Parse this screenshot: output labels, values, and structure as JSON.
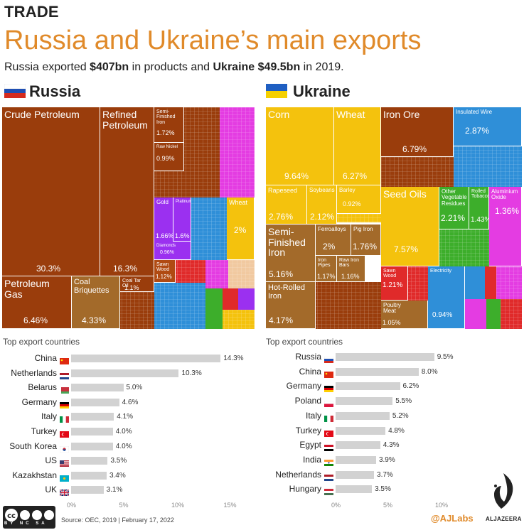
{
  "header": {
    "kicker": "TRADE",
    "title": "Russia and Ukraine’s main exports",
    "subtitle_prefix": "Russia exported ",
    "subtitle_russia_value": "$407bn",
    "subtitle_mid": " in products and ",
    "subtitle_ukraine_value": "Ukraine $49.5bn",
    "subtitle_suffix": " in 2019."
  },
  "colors": {
    "brown": "#9a3d0c",
    "dark_orange": "#b04a12",
    "wood": "#a36a2a",
    "yellow": "#f4c20d",
    "blue": "#2f8fd8",
    "purple": "#9b30f0",
    "magenta": "#e43ce2",
    "green": "#3dae2b",
    "red": "#e02a2a",
    "accent": "#e08a2a",
    "bar": "#d2d2d2"
  },
  "russia": {
    "heading": "Russia",
    "treemap": [
      {
        "label": "Crude Petroleum",
        "pct": "30.3%"
      },
      {
        "label": "Refined\nPetroleum",
        "pct": "16.3%"
      },
      {
        "label": "Petroleum\nGas",
        "pct": "6.46%"
      },
      {
        "label": "Coal\nBriquettes",
        "pct": "4.33%"
      },
      {
        "label": "Coal Tar\nOil",
        "pct": "1.1%"
      },
      {
        "label": "Semi-\nFinished\nIron",
        "pct": "1.72%"
      },
      {
        "label": "Raw Nickel",
        "pct": "0.99%"
      },
      {
        "label": "Gold",
        "pct": "1.66%"
      },
      {
        "label": "Platinum",
        "pct": "1.6%"
      },
      {
        "label": "Diamonds",
        "pct": "0.96%"
      },
      {
        "label": "Wheat",
        "pct": "2%"
      },
      {
        "label": "Sawn\nWood",
        "pct": "1.12%"
      }
    ],
    "top_export_label": "Top export countries",
    "countries": [
      {
        "name": "China",
        "value": 14.3,
        "label": "14.3%"
      },
      {
        "name": "Netherlands",
        "value": 10.3,
        "label": "10.3%"
      },
      {
        "name": "Belarus",
        "value": 5.0,
        "label": "5.0%"
      },
      {
        "name": "Germany",
        "value": 4.6,
        "label": "4.6%"
      },
      {
        "name": "Italy",
        "value": 4.1,
        "label": "4.1%"
      },
      {
        "name": "Turkey",
        "value": 4.0,
        "label": "4.0%"
      },
      {
        "name": "South Korea",
        "value": 4.0,
        "label": "4.0%"
      },
      {
        "name": "US",
        "value": 3.5,
        "label": "3.5%"
      },
      {
        "name": "Kazakhstan",
        "value": 3.4,
        "label": "3.4%"
      },
      {
        "name": "UK",
        "value": 3.1,
        "label": "3.1%"
      }
    ],
    "ticks": [
      "0%",
      "5%",
      "10%",
      "15%"
    ]
  },
  "ukraine": {
    "heading": "Ukraine",
    "treemap": [
      {
        "label": "Corn",
        "pct": "9.64%"
      },
      {
        "label": "Wheat",
        "pct": "6.27%"
      },
      {
        "label": "Iron Ore",
        "pct": "6.79%"
      },
      {
        "label": "Insulated Wire",
        "pct": "2.87%"
      },
      {
        "label": "Rapeseed",
        "pct": "2.76%"
      },
      {
        "label": "Soybeans",
        "pct": "2.12%"
      },
      {
        "label": "Barley",
        "pct": "0.92%"
      },
      {
        "label": "Seed Oils",
        "pct": "7.57%"
      },
      {
        "label": "Other\nVegetable\nResidues",
        "pct": "2.21%"
      },
      {
        "label": "Rolled\nTobacco",
        "pct": "1.43%"
      },
      {
        "label": "Aluminium\nOxide",
        "pct": "1.36%"
      },
      {
        "label": "Semi-\nFinished\nIron",
        "pct": "5.16%"
      },
      {
        "label": "Ferroalloys",
        "pct": "2%"
      },
      {
        "label": "Pig Iron",
        "pct": "1.76%"
      },
      {
        "label": "Iron\nPipes",
        "pct": "1.17%"
      },
      {
        "label": "Raw Iron\nBars",
        "pct": "1.16%"
      },
      {
        "label": "Hot-Rolled\nIron",
        "pct": "4.17%"
      },
      {
        "label": "Sawn Wood",
        "pct": "1.21%"
      },
      {
        "label": "Poultry\nMeat",
        "pct": "1.05%"
      },
      {
        "label": "Electricity",
        "pct": "0.94%"
      }
    ],
    "top_export_label": "Top export countries",
    "countries": [
      {
        "name": "Russia",
        "value": 9.5,
        "label": "9.5%"
      },
      {
        "name": "China",
        "value": 8.0,
        "label": "8.0%"
      },
      {
        "name": "Germany",
        "value": 6.2,
        "label": "6.2%"
      },
      {
        "name": "Poland",
        "value": 5.5,
        "label": "5.5%"
      },
      {
        "name": "Italy",
        "value": 5.2,
        "label": "5.2%"
      },
      {
        "name": "Turkey",
        "value": 4.8,
        "label": "4.8%"
      },
      {
        "name": "Egypt",
        "value": 4.3,
        "label": "4.3%"
      },
      {
        "name": "India",
        "value": 3.9,
        "label": "3.9%"
      },
      {
        "name": "Netherlands",
        "value": 3.7,
        "label": "3.7%"
      },
      {
        "name": "Hungary",
        "value": 3.5,
        "label": "3.5%"
      }
    ],
    "ticks": [
      "0%",
      "5%",
      "10%"
    ]
  },
  "chart_data": [
    {
      "type": "treemap",
      "subtitle": "Russia",
      "items": [
        {
          "label": "Crude Petroleum",
          "value": 30.3
        },
        {
          "label": "Refined Petroleum",
          "value": 16.3
        },
        {
          "label": "Petroleum Gas",
          "value": 6.46
        },
        {
          "label": "Coal Briquettes",
          "value": 4.33
        },
        {
          "label": "Wheat",
          "value": 2
        },
        {
          "label": "Semi-Finished Iron",
          "value": 1.72
        },
        {
          "label": "Gold",
          "value": 1.66
        },
        {
          "label": "Platinum",
          "value": 1.6
        },
        {
          "label": "Sawn Wood",
          "value": 1.12
        },
        {
          "label": "Coal Tar Oil",
          "value": 1.1
        },
        {
          "label": "Raw Nickel",
          "value": 0.99
        },
        {
          "label": "Diamonds",
          "value": 0.96
        }
      ]
    },
    {
      "type": "treemap",
      "subtitle": "Ukraine",
      "items": [
        {
          "label": "Corn",
          "value": 9.64
        },
        {
          "label": "Seed Oils",
          "value": 7.57
        },
        {
          "label": "Iron Ore",
          "value": 6.79
        },
        {
          "label": "Wheat",
          "value": 6.27
        },
        {
          "label": "Semi-Finished Iron",
          "value": 5.16
        },
        {
          "label": "Hot-Rolled Iron",
          "value": 4.17
        },
        {
          "label": "Insulated Wire",
          "value": 2.87
        },
        {
          "label": "Rapeseed",
          "value": 2.76
        },
        {
          "label": "Other Vegetable Residues",
          "value": 2.21
        },
        {
          "label": "Soybeans",
          "value": 2.12
        },
        {
          "label": "Ferroalloys",
          "value": 2
        },
        {
          "label": "Pig Iron",
          "value": 1.76
        },
        {
          "label": "Rolled Tobacco",
          "value": 1.43
        },
        {
          "label": "Aluminium Oxide",
          "value": 1.36
        },
        {
          "label": "Sawn Wood",
          "value": 1.21
        },
        {
          "label": "Iron Pipes",
          "value": 1.17
        },
        {
          "label": "Raw Iron Bars",
          "value": 1.16
        },
        {
          "label": "Poultry Meat",
          "value": 1.05
        },
        {
          "label": "Electricity",
          "value": 0.94
        },
        {
          "label": "Barley",
          "value": 0.92
        }
      ]
    },
    {
      "type": "bar",
      "orientation": "horizontal",
      "title": "Top export countries",
      "subtitle": "Russia",
      "categories": [
        "China",
        "Netherlands",
        "Belarus",
        "Germany",
        "Italy",
        "Turkey",
        "South Korea",
        "US",
        "Kazakhstan",
        "UK"
      ],
      "values": [
        14.3,
        10.3,
        5.0,
        4.6,
        4.1,
        4.0,
        4.0,
        3.5,
        3.4,
        3.1
      ],
      "xlim": [
        0,
        15
      ]
    },
    {
      "type": "bar",
      "orientation": "horizontal",
      "title": "Top export countries",
      "subtitle": "Ukraine",
      "categories": [
        "Russia",
        "China",
        "Germany",
        "Poland",
        "Italy",
        "Turkey",
        "Egypt",
        "India",
        "Netherlands",
        "Hungary"
      ],
      "values": [
        9.5,
        8.0,
        6.2,
        5.5,
        5.2,
        4.8,
        4.3,
        3.9,
        3.7,
        3.5
      ],
      "xlim": [
        0,
        10
      ]
    }
  ],
  "footer": {
    "license": "BY NC SA",
    "source": "Source: OEC, 2019 | February 17, 2022",
    "handle": "@AJLabs",
    "brand": "ALJAZEERA"
  }
}
